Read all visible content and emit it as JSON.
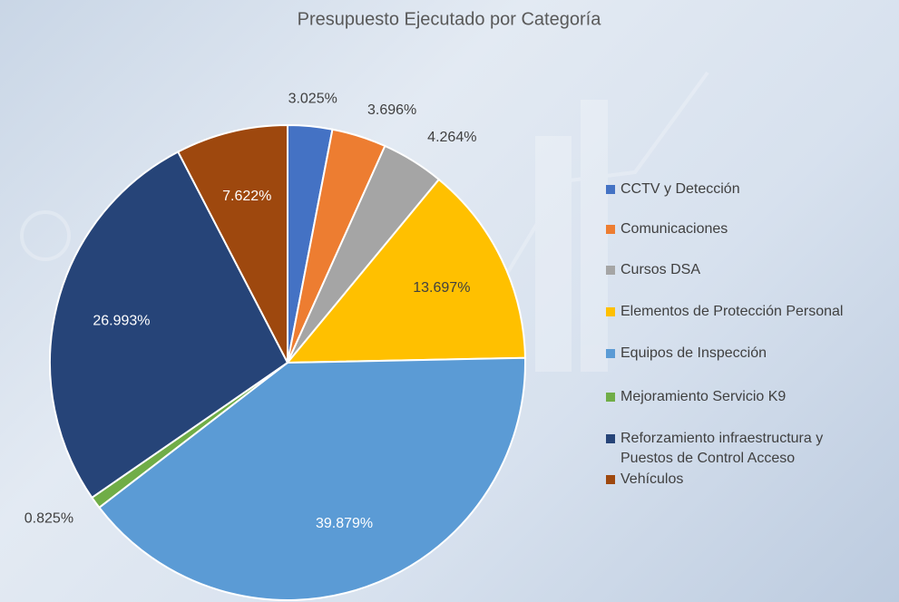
{
  "chart_data": {
    "type": "pie",
    "title": "Presupuesto Ejecutado por Categoría",
    "categories": [
      "CCTV y Detección",
      "Comunicaciones",
      "Cursos DSA",
      "Elementos de Protección Personal",
      "Equipos de Inspección",
      "Mejoramiento Servicio K9",
      "Reforzamiento infraestructura y Puestos de Control Acceso",
      "Vehículos"
    ],
    "values": [
      3.025,
      3.696,
      4.264,
      13.697,
      39.879,
      0.825,
      26.993,
      7.622
    ],
    "value_labels": [
      "3.025%",
      "3.696%",
      "4.264%",
      "13.697%",
      "39.879%",
      "0.825%",
      "26.993%",
      "7.622%"
    ],
    "colors": [
      "#4472c4",
      "#ed7d31",
      "#a5a5a5",
      "#ffc000",
      "#5b9bd5",
      "#70ad47",
      "#264478",
      "#9e480e"
    ],
    "legend": "right"
  }
}
